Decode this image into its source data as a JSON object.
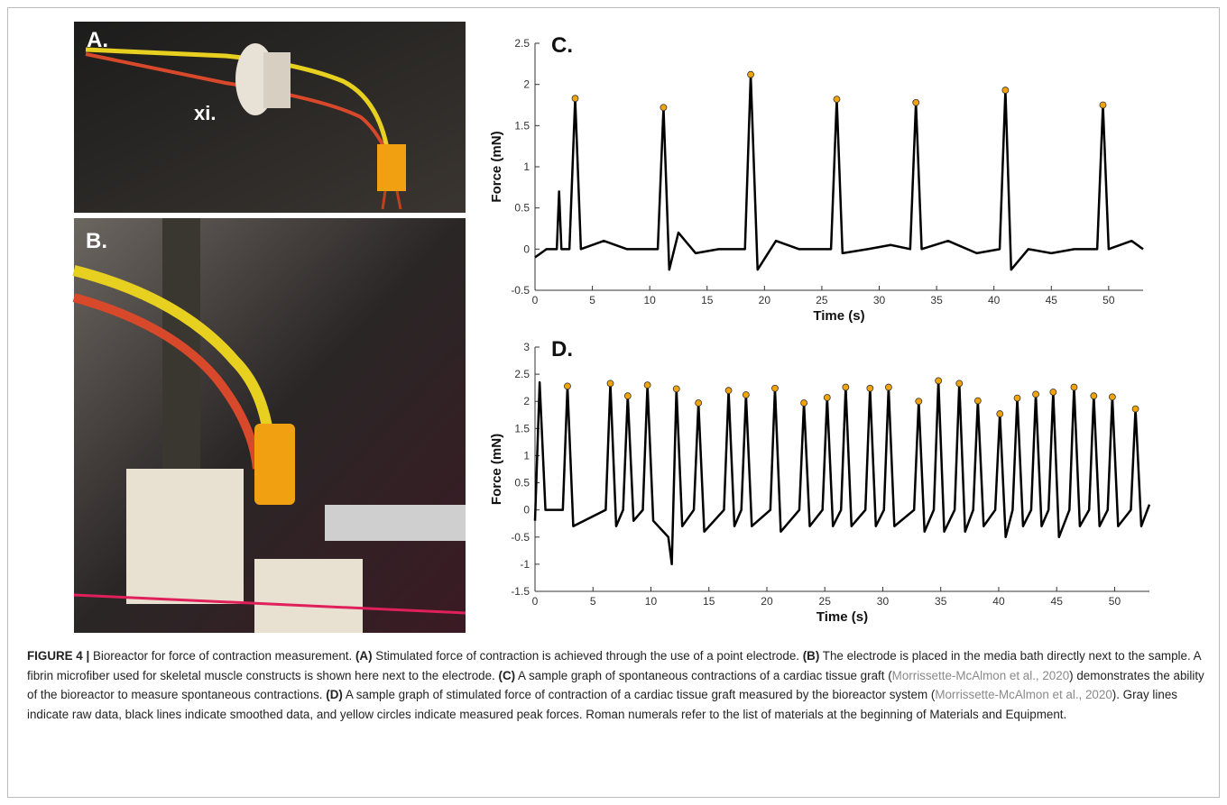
{
  "panels": {
    "a_label": "A.",
    "a_numeral": "xi.",
    "b_label": "B."
  },
  "chart_data": [
    {
      "type": "line",
      "title": "C.",
      "x_label": "Time (s)",
      "y_label": "Force (mN)",
      "xlim": [
        0,
        53
      ],
      "ylim": [
        -0.5,
        2.5
      ],
      "xticks": [
        0,
        5,
        10,
        15,
        20,
        25,
        30,
        35,
        40,
        45,
        50
      ],
      "yticks": [
        -0.5,
        0,
        0.5,
        1,
        1.5,
        2,
        2.5
      ],
      "series": [
        {
          "type": "line",
          "color": "#000000",
          "x": [
            0,
            1,
            1.9,
            2.1,
            2.3,
            3,
            3.5,
            4,
            6,
            8,
            10.7,
            11.2,
            11.7,
            12.5,
            14,
            16,
            18.3,
            18.8,
            19.4,
            21,
            23,
            25.8,
            26.3,
            26.8,
            29,
            31,
            32.7,
            33.2,
            33.7,
            36,
            38.5,
            40.5,
            41,
            41.5,
            43,
            45,
            47,
            49,
            49.5,
            50,
            52,
            53
          ],
          "values": [
            -0.1,
            0,
            0,
            0.7,
            0,
            0,
            1.83,
            0,
            0.1,
            0,
            0,
            1.72,
            -0.25,
            0.2,
            -0.05,
            0,
            0,
            2.12,
            -0.25,
            0.1,
            0,
            0,
            1.82,
            -0.05,
            0,
            0.05,
            0,
            1.78,
            0,
            0.1,
            -0.05,
            0,
            1.93,
            -0.25,
            0,
            -0.05,
            0,
            0,
            1.75,
            0,
            0.1,
            0
          ]
        },
        {
          "type": "scatter",
          "color": "#f0a30a",
          "x": [
            3.5,
            11.2,
            18.8,
            26.3,
            33.2,
            41,
            49.5
          ],
          "values": [
            1.83,
            1.72,
            2.12,
            1.82,
            1.78,
            1.93,
            1.75
          ]
        }
      ]
    },
    {
      "type": "line",
      "title": "D.",
      "x_label": "Time (s)",
      "y_label": "Force (mN)",
      "xlim": [
        0,
        53
      ],
      "ylim": [
        -1.5,
        3
      ],
      "xticks": [
        0,
        5,
        10,
        15,
        20,
        25,
        30,
        35,
        40,
        45,
        50
      ],
      "yticks": [
        -1.5,
        -1,
        -0.5,
        0,
        0.5,
        1,
        1.5,
        2,
        2.5,
        3
      ],
      "series": [
        {
          "type": "line",
          "color": "#000000",
          "x": [
            0,
            0.4,
            0.9,
            2.4,
            2.8,
            3.3,
            6.1,
            6.5,
            7.0,
            7.6,
            8,
            8.5,
            9.3,
            9.7,
            10.2,
            11.5,
            11.8,
            12.2,
            12.7,
            13.7,
            14.1,
            14.6,
            16.3,
            16.7,
            17.2,
            17.8,
            18.2,
            18.7,
            20.3,
            20.7,
            21.2,
            22.8,
            23.2,
            23.7,
            24.8,
            25.2,
            25.7,
            26.4,
            26.8,
            27.3,
            28.5,
            28.9,
            29.4,
            30.1,
            30.5,
            31,
            32.7,
            33.1,
            33.6,
            34.4,
            34.8,
            35.3,
            36.2,
            36.6,
            37.1,
            37.8,
            38.2,
            38.7,
            39.7,
            40.1,
            40.6,
            41.2,
            41.6,
            42.1,
            42.8,
            43.2,
            43.7,
            44.3,
            44.7,
            45.2,
            46.1,
            46.5,
            47,
            47.8,
            48.2,
            48.7,
            49.4,
            49.8,
            50.3,
            51.4,
            51.8,
            52.3,
            53
          ],
          "values": [
            -0.2,
            2.35,
            0,
            0,
            2.28,
            -0.3,
            0,
            2.33,
            -0.3,
            0,
            2.1,
            -0.2,
            0,
            2.3,
            -0.2,
            -0.5,
            -1,
            2.23,
            -0.3,
            0,
            1.97,
            -0.4,
            0,
            2.2,
            -0.3,
            0,
            2.12,
            -0.3,
            0,
            2.24,
            -0.4,
            0,
            1.97,
            -0.3,
            0,
            2.07,
            -0.3,
            0,
            2.26,
            -0.3,
            0,
            2.24,
            -0.3,
            0,
            2.26,
            -0.3,
            0,
            2.0,
            -0.4,
            0,
            2.38,
            -0.4,
            0,
            2.33,
            -0.4,
            0,
            2.01,
            -0.3,
            0,
            1.77,
            -0.5,
            0,
            2.06,
            -0.3,
            0,
            2.13,
            -0.3,
            0,
            2.17,
            -0.5,
            0,
            2.26,
            -0.3,
            0,
            2.1,
            -0.3,
            0,
            2.08,
            -0.3,
            0,
            1.86,
            -0.3,
            0.1
          ]
        },
        {
          "type": "scatter",
          "color": "#f0a30a",
          "x": [
            2.8,
            6.5,
            8,
            9.7,
            12.2,
            14.1,
            16.7,
            18.2,
            20.7,
            23.2,
            25.2,
            26.8,
            28.9,
            30.5,
            33.1,
            34.8,
            36.6,
            38.2,
            40.1,
            41.6,
            43.2,
            44.7,
            46.5,
            48.2,
            49.8,
            51.8
          ],
          "values": [
            2.28,
            2.33,
            2.1,
            2.3,
            2.23,
            1.97,
            2.2,
            2.12,
            2.24,
            1.97,
            2.07,
            2.26,
            2.24,
            2.26,
            2.0,
            2.38,
            2.33,
            2.01,
            1.77,
            2.06,
            2.13,
            2.17,
            2.26,
            2.1,
            2.08,
            1.86
          ]
        }
      ]
    }
  ],
  "caption": {
    "segments": [
      {
        "text": "FIGURE 4 |",
        "bold": true
      },
      {
        "text": " Bioreactor for force of contraction measurement. "
      },
      {
        "text": "(A)",
        "bold": true
      },
      {
        "text": " Stimulated force of contraction is achieved through the use of a point electrode. "
      },
      {
        "text": "(B)",
        "bold": true
      },
      {
        "text": " The electrode is placed in the media bath directly next to the sample. A fibrin microfiber used for skeletal muscle constructs is shown here next to the electrode. "
      },
      {
        "text": "(C)",
        "bold": true
      },
      {
        "text": " A sample graph of spontaneous contractions of a cardiac tissue graft ("
      },
      {
        "text": "Morrissette-McAlmon et al., 2020",
        "link": true
      },
      {
        "text": ") demonstrates the ability of the bioreactor to measure spontaneous contractions. "
      },
      {
        "text": "(D)",
        "bold": true
      },
      {
        "text": " A sample graph of stimulated force of contraction of a cardiac tissue graft measured by the bioreactor system ("
      },
      {
        "text": "Morrissette-McAlmon et al., 2020",
        "link": true
      },
      {
        "text": "). Gray lines indicate raw data, black lines indicate smoothed data, and yellow circles indicate measured peak forces. Roman numerals refer to the list of materials at the beginning of Materials and Equipment."
      }
    ]
  }
}
